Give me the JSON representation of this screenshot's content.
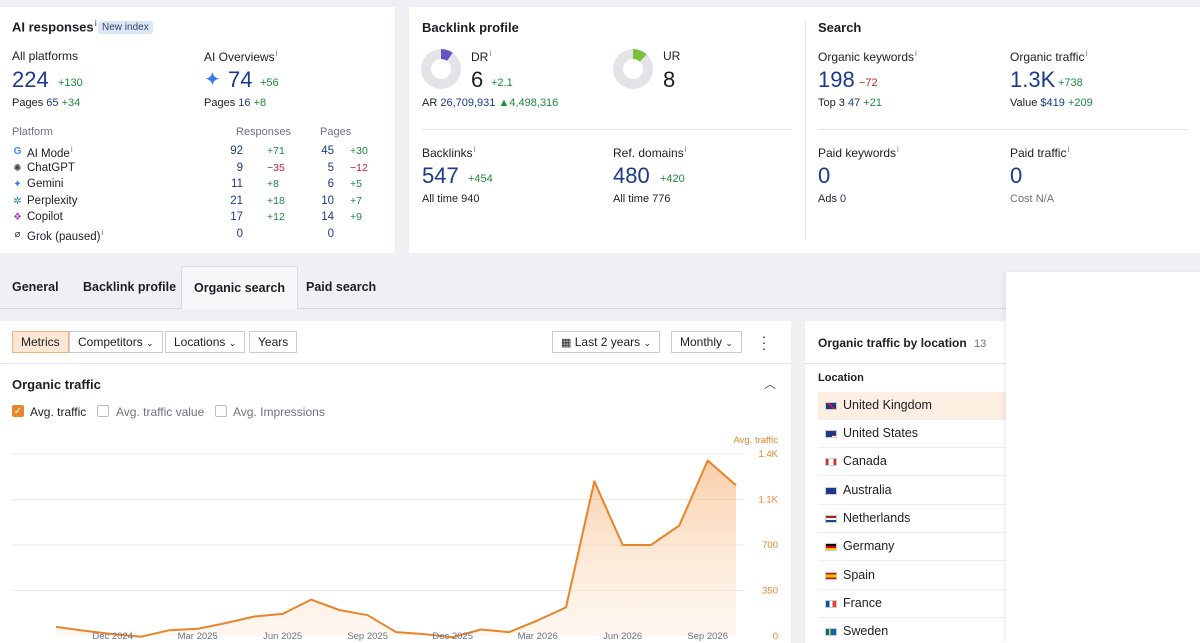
{
  "ai": {
    "title": "AI responses",
    "badge": "New index",
    "all_platforms": {
      "label": "All platforms",
      "value": "224",
      "delta": "+130",
      "pages_label": "Pages",
      "pages": "65",
      "pages_delta": "+34"
    },
    "ai_overviews": {
      "label": "AI Overviews",
      "value": "74",
      "delta": "+56",
      "pages_label": "Pages",
      "pages": "16",
      "pages_delta": "+8"
    },
    "columns": {
      "platform": "Platform",
      "responses": "Responses",
      "pages": "Pages"
    },
    "platforms": [
      {
        "name": "AI Mode",
        "icon": "google-icon",
        "responses": "92",
        "resp_delta": "+71",
        "pages": "45",
        "pages_delta": "+30"
      },
      {
        "name": "ChatGPT",
        "icon": "chatgpt-icon",
        "responses": "9",
        "resp_delta": "−35",
        "pages": "5",
        "pages_delta": "−12"
      },
      {
        "name": "Gemini",
        "icon": "gemini-icon",
        "responses": "11",
        "resp_delta": "+8",
        "pages": "6",
        "pages_delta": "+5"
      },
      {
        "name": "Perplexity",
        "icon": "perplexity-icon",
        "responses": "21",
        "resp_delta": "+18",
        "pages": "10",
        "pages_delta": "+7"
      },
      {
        "name": "Copilot",
        "icon": "copilot-icon",
        "responses": "17",
        "resp_delta": "+12",
        "pages": "14",
        "pages_delta": "+9"
      },
      {
        "name": "Grok (paused)",
        "icon": "grok-icon",
        "responses": "0",
        "resp_delta": "",
        "pages": "0",
        "pages_delta": ""
      }
    ]
  },
  "backlink": {
    "title": "Backlink profile",
    "dr": {
      "label": "DR",
      "value": "6",
      "delta": "+2.1"
    },
    "ur": {
      "label": "UR",
      "value": "8"
    },
    "ar": {
      "label": "AR",
      "value": "26,709,931",
      "delta": "4,498,316"
    },
    "backlinks": {
      "label": "Backlinks",
      "value": "547",
      "delta": "+454",
      "alltime_label": "All time",
      "alltime": "940"
    },
    "refdomains": {
      "label": "Ref. domains",
      "value": "480",
      "delta": "+420",
      "alltime_label": "All time",
      "alltime": "776"
    }
  },
  "search": {
    "title": "Search",
    "organic_keywords": {
      "label": "Organic keywords",
      "value": "198",
      "delta": "−72",
      "top3_label": "Top 3",
      "top3": "47",
      "top3_delta": "+21"
    },
    "organic_traffic": {
      "label": "Organic traffic",
      "value": "1.3K",
      "delta": "+738",
      "value_label": "Value",
      "value_amount": "$419",
      "value_delta": "+209"
    },
    "paid_keywords": {
      "label": "Paid keywords",
      "value": "0",
      "ads_label": "Ads",
      "ads": "0"
    },
    "paid_traffic": {
      "label": "Paid traffic",
      "value": "0",
      "cost_label": "Cost",
      "cost": "N/A"
    }
  },
  "tabs": [
    "General",
    "Backlink profile",
    "Organic search",
    "Paid search"
  ],
  "toolbar": {
    "filters": [
      "Metrics",
      "Competitors",
      "Locations",
      "Years"
    ],
    "period": "Last 2 years",
    "interval": "Monthly"
  },
  "traffic": {
    "title": "Organic traffic",
    "checks": [
      {
        "label": "Avg. traffic",
        "checked": true
      },
      {
        "label": "Avg. traffic value",
        "checked": false
      },
      {
        "label": "Avg. Impressions",
        "checked": false
      }
    ]
  },
  "chart_data": {
    "type": "area",
    "series": [
      {
        "name": "Avg. traffic",
        "values": [
          70,
          40,
          15,
          -5,
          45,
          55,
          100,
          150,
          170,
          280,
          200,
          160,
          30,
          15,
          -10,
          50,
          30,
          120,
          220,
          1190,
          700,
          700,
          850,
          1350,
          1160
        ]
      }
    ],
    "x": [
      "Oct 2024",
      "Nov 2024",
      "Dec 2024",
      "Jan 2025",
      "Feb 2025",
      "Mar 2025",
      "Apr 2025",
      "May 2025",
      "Jun 2025",
      "Jul 2025",
      "Aug 2025",
      "Sep 2025",
      "Oct 2025",
      "Nov 2025",
      "Dec 2025",
      "Jan 2026",
      "Feb 2026",
      "Mar 2026",
      "Apr 2026",
      "May 2026",
      "Jun 2026",
      "Jul 2026",
      "Aug 2026",
      "Sep 2026",
      "Oct 2026"
    ],
    "x_ticks": [
      "Dec 2024",
      "Mar 2025",
      "Jun 2025",
      "Sep 2025",
      "Dec 2025",
      "Mar 2026",
      "Jun 2026",
      "Sep 2026"
    ],
    "y_ticks": [
      "0",
      "350",
      "700",
      "1.1K",
      "1.4K"
    ],
    "ylabel": "Avg. traffic",
    "ylim": [
      0,
      1400
    ],
    "color": "#e8842a"
  },
  "location": {
    "title": "Organic traffic by location",
    "count": "13",
    "column": "Location",
    "items": [
      "United Kingdom",
      "United States",
      "Canada",
      "Australia",
      "Netherlands",
      "Germany",
      "Spain",
      "France",
      "Sweden"
    ]
  }
}
